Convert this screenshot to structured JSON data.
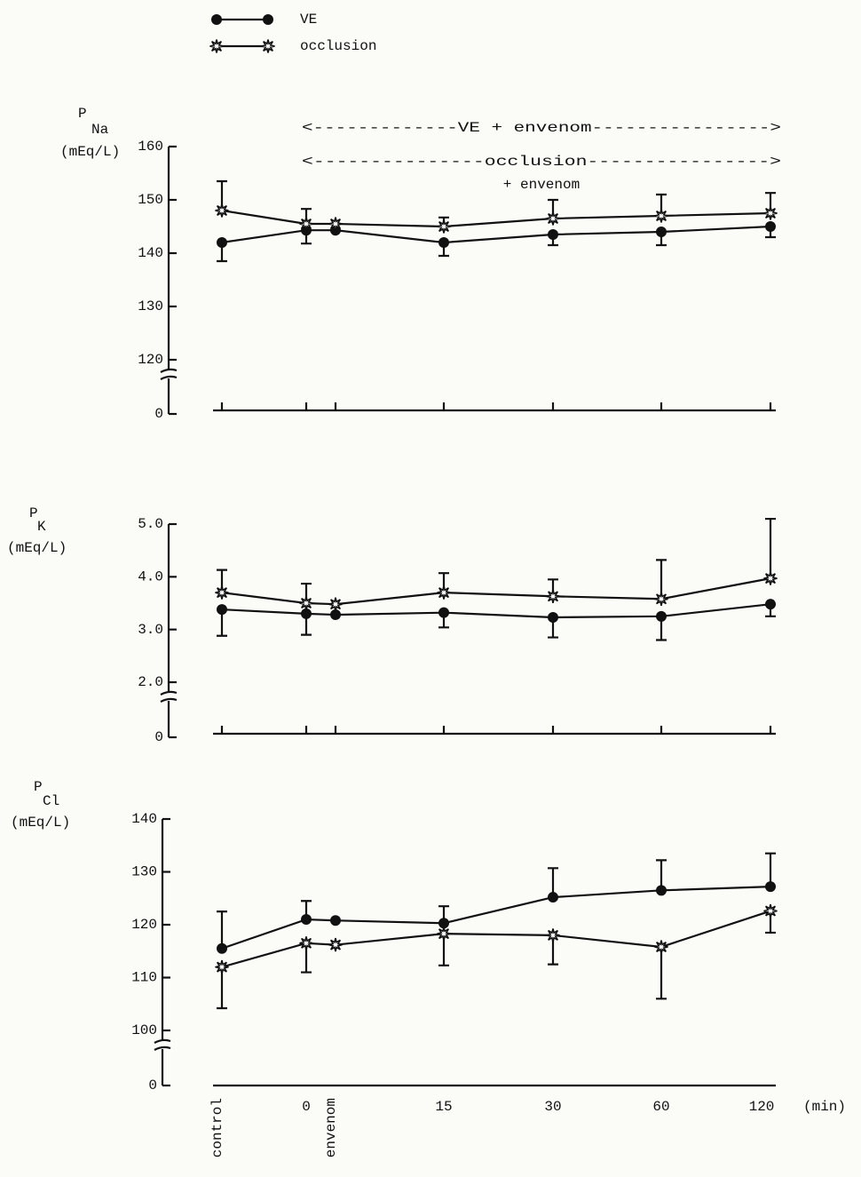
{
  "chart_data": [
    {
      "type": "line",
      "ylabel": {
        "text": "P",
        "subscript": "Na",
        "unit": "(mEq/L)"
      },
      "annotations": [
        "<-------------VE + envenom---------------->",
        "<---------------occlusion---------------->",
        "+ envenom"
      ],
      "ylim": [
        120,
        160
      ],
      "yticks": [
        0,
        120,
        130,
        140,
        150,
        160
      ],
      "axis_break": true,
      "category_ticks": true,
      "series": [
        {
          "name": "VE",
          "color": "#111111",
          "marker": "circle",
          "error_direction": "down",
          "values": [
            142,
            144.3,
            144.3,
            142,
            143.5,
            144,
            145
          ],
          "errors": [
            3.5,
            2.5,
            null,
            2.5,
            2,
            2.5,
            2
          ]
        },
        {
          "name": "occlusion",
          "color": "#111111",
          "marker": "star",
          "error_direction": "up",
          "values": [
            148,
            145.5,
            145.5,
            145,
            146.5,
            147,
            147.5
          ],
          "errors": [
            5.5,
            2.8,
            null,
            1.7,
            3.5,
            4,
            3.8
          ]
        }
      ]
    },
    {
      "type": "line",
      "ylabel": {
        "text": "P",
        "subscript": "K",
        "unit": "(mEq/L)"
      },
      "ylim": [
        2,
        5
      ],
      "yticks": [
        0,
        {
          "value": 2,
          "label": "2.0"
        },
        {
          "value": 3,
          "label": "3.0"
        },
        {
          "value": 4,
          "label": "4.0"
        },
        {
          "value": 5,
          "label": "5.0"
        }
      ],
      "axis_break": true,
      "category_ticks": true,
      "series": [
        {
          "color": "#111111",
          "marker": "circle",
          "error_direction": "down",
          "values": [
            3.38,
            3.3,
            3.28,
            3.32,
            3.23,
            3.25,
            3.48
          ],
          "errors": [
            0.5,
            0.4,
            null,
            0.28,
            0.38,
            0.45,
            0.23
          ]
        },
        {
          "color": "#111111",
          "marker": "star",
          "error_direction": "up",
          "values": [
            3.7,
            3.5,
            3.48,
            3.7,
            3.63,
            3.58,
            3.97
          ],
          "errors": [
            0.43,
            0.37,
            null,
            0.37,
            0.32,
            0.74,
            1.13
          ]
        }
      ]
    },
    {
      "type": "line",
      "ylabel": {
        "text": "P",
        "subscript": "Cl",
        "unit": "(mEq/L)"
      },
      "categories": [
        "control",
        "0",
        "envenom",
        "15",
        "30",
        "60",
        "120"
      ],
      "xlabel": "(min)",
      "ylim": [
        100,
        140
      ],
      "yticks": [
        0,
        100,
        110,
        120,
        130,
        140
      ],
      "axis_break": true,
      "category_ticks": false,
      "series": [
        {
          "color": "#111111",
          "marker": "circle",
          "error_direction": "up",
          "values": [
            115.5,
            121,
            120.8,
            120.3,
            125.2,
            126.5,
            127.2
          ],
          "errors": [
            7,
            3.5,
            null,
            3.2,
            5.5,
            5.7,
            6.3
          ]
        },
        {
          "color": "#111111",
          "marker": "star",
          "error_direction": "down",
          "values": [
            112,
            116.5,
            116.2,
            118.3,
            118,
            115.8,
            122.6
          ],
          "errors": [
            7.8,
            5.5,
            null,
            6,
            5.5,
            9.8,
            4.1
          ]
        }
      ]
    }
  ]
}
